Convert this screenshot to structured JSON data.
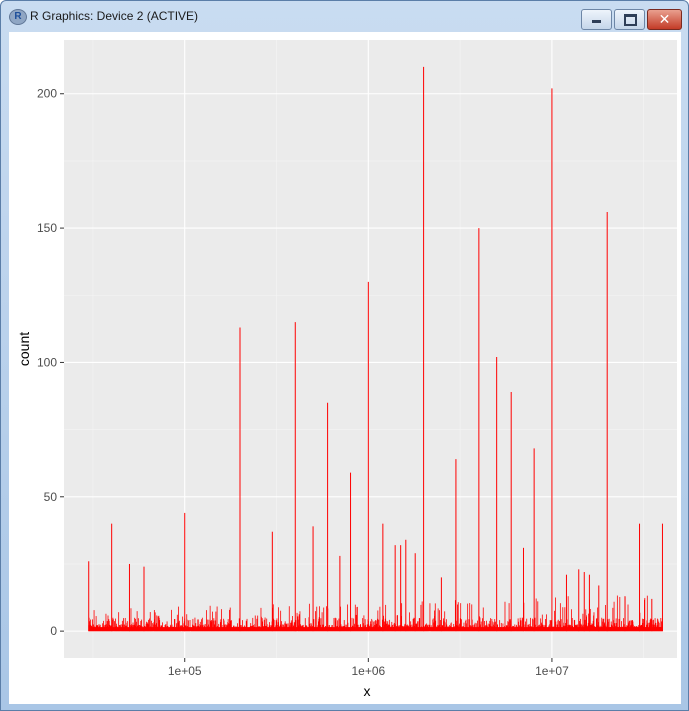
{
  "window": {
    "title": "R Graphics: Device 2 (ACTIVE)",
    "app_icon_glyph": "R",
    "close_glyph": "✕"
  },
  "chart_data": {
    "type": "bar",
    "xscale": "log10",
    "xlabel": "x",
    "ylabel": "count",
    "xlim": [
      22000,
      48000000
    ],
    "ylim": [
      -10,
      220
    ],
    "x_ticks": [
      100000,
      1000000,
      10000000
    ],
    "x_tick_labels": [
      "1e+05",
      "1e+06",
      "1e+07"
    ],
    "y_ticks": [
      0,
      50,
      100,
      150,
      200
    ],
    "y_tick_labels": [
      "0",
      "50",
      "100",
      "150",
      "200"
    ],
    "bar_color": "#ff0000",
    "panel_background": "#ebebeb",
    "grid": true,
    "peaks": [
      {
        "x": 30000,
        "count": 26
      },
      {
        "x": 40000,
        "count": 40
      },
      {
        "x": 50000,
        "count": 25
      },
      {
        "x": 60000,
        "count": 24
      },
      {
        "x": 100000,
        "count": 44
      },
      {
        "x": 200000,
        "count": 113
      },
      {
        "x": 300000,
        "count": 37
      },
      {
        "x": 400000,
        "count": 115
      },
      {
        "x": 500000,
        "count": 39
      },
      {
        "x": 600000,
        "count": 85
      },
      {
        "x": 700000,
        "count": 28
      },
      {
        "x": 800000,
        "count": 59
      },
      {
        "x": 1000000,
        "count": 130
      },
      {
        "x": 1200000,
        "count": 40
      },
      {
        "x": 1400000,
        "count": 32
      },
      {
        "x": 1500000,
        "count": 32
      },
      {
        "x": 1600000,
        "count": 34
      },
      {
        "x": 1800000,
        "count": 29
      },
      {
        "x": 2000000,
        "count": 210
      },
      {
        "x": 2500000,
        "count": 20
      },
      {
        "x": 3000000,
        "count": 64
      },
      {
        "x": 4000000,
        "count": 150
      },
      {
        "x": 5000000,
        "count": 102
      },
      {
        "x": 6000000,
        "count": 89
      },
      {
        "x": 7000000,
        "count": 31
      },
      {
        "x": 8000000,
        "count": 68
      },
      {
        "x": 10000000,
        "count": 202
      },
      {
        "x": 12000000,
        "count": 21
      },
      {
        "x": 14000000,
        "count": 23
      },
      {
        "x": 15000000,
        "count": 22
      },
      {
        "x": 16000000,
        "count": 21
      },
      {
        "x": 18000000,
        "count": 17
      },
      {
        "x": 20000000,
        "count": 156
      },
      {
        "x": 25000000,
        "count": 13
      },
      {
        "x": 30000000,
        "count": 40
      },
      {
        "x": 35000000,
        "count": 12
      },
      {
        "x": 40000000,
        "count": 40
      }
    ],
    "background_count_range": [
      0,
      14
    ],
    "x_range_of_data": [
      30000,
      40000000
    ]
  }
}
